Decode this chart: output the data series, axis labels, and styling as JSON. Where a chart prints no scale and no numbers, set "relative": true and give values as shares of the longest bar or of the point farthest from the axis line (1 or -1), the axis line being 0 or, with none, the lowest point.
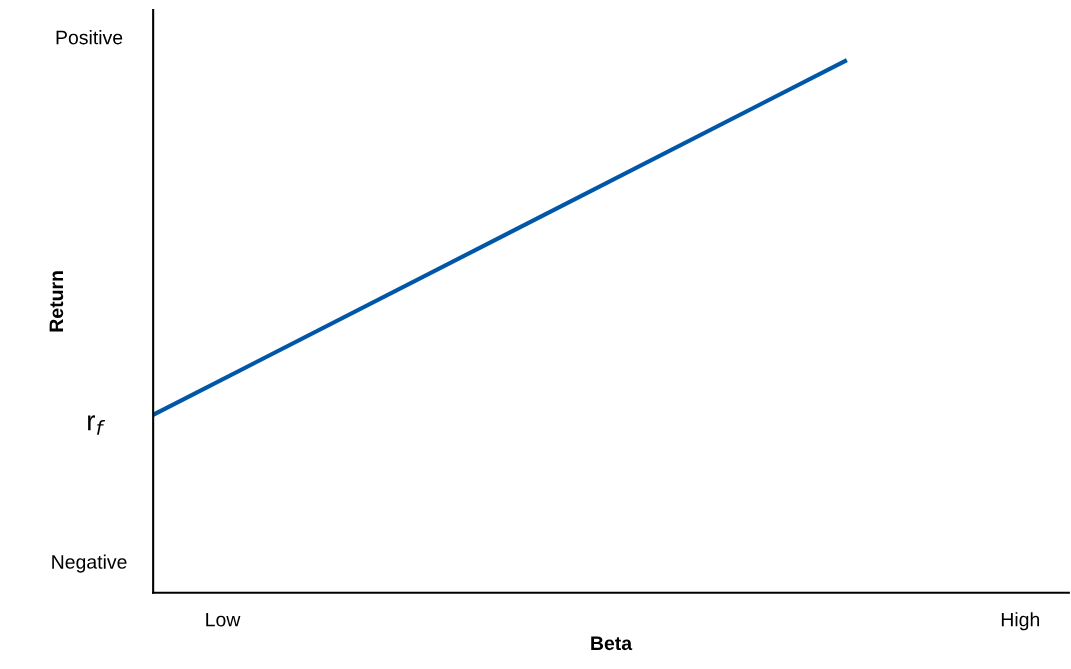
{
  "chart_data": {
    "type": "line",
    "xlabel": "Beta",
    "ylabel": "Return",
    "relative": true,
    "categories": [
      null,
      null,
      "Low",
      null,
      null,
      null,
      null,
      null,
      null,
      null,
      null,
      null,
      null,
      null,
      null,
      null,
      null,
      null,
      null,
      null,
      null,
      null,
      null,
      null,
      null,
      "High"
    ],
    "series": [
      {
        "color": "#0057a8",
        "values": [
          0.334,
          null,
          null,
          null,
          null,
          null,
          null,
          null,
          null,
          null,
          null,
          null,
          null,
          null,
          null,
          null,
          null,
          null,
          null,
          null,
          1,
          null,
          null,
          null,
          null,
          null
        ]
      }
    ],
    "annotations": [
      "Positive",
      "r$_{f}$",
      "Negative"
    ],
    "grid": false,
    "legend": false,
    "marker": "none",
    "line_style": "solid"
  }
}
